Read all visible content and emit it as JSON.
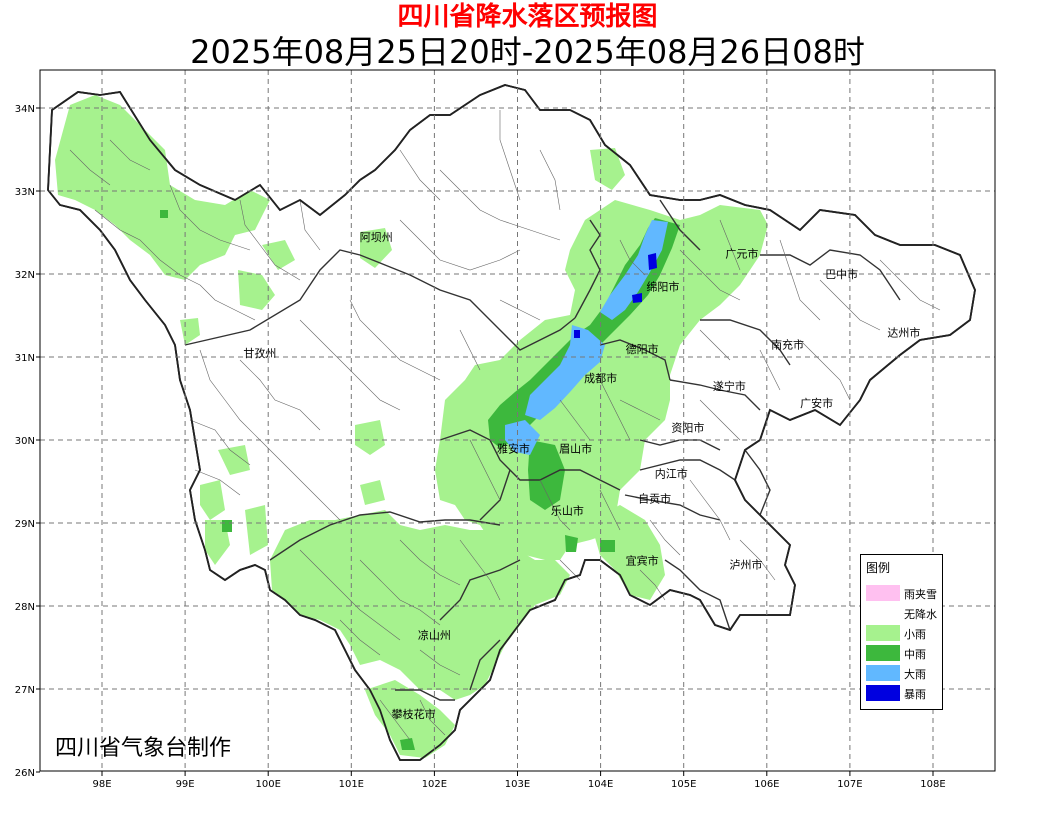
{
  "title": "四川省降水落区预报图",
  "subtitle": "2025年08月25日20时-2025年08月26日08时",
  "credit": "四川省气象台制作",
  "axes": {
    "lon_ticks": [
      "98E",
      "99E",
      "100E",
      "101E",
      "102E",
      "103E",
      "104E",
      "105E",
      "106E",
      "107E",
      "108E"
    ],
    "lat_ticks": [
      "34N",
      "33N",
      "32N",
      "31N",
      "30N",
      "29N",
      "28N",
      "27N",
      "26N"
    ]
  },
  "cities": [
    {
      "name": "阿坝州",
      "lon": 101.3,
      "lat": 32.4
    },
    {
      "name": "甘孜州",
      "lon": 99.9,
      "lat": 31.0
    },
    {
      "name": "广元市",
      "lon": 105.7,
      "lat": 32.2
    },
    {
      "name": "巴中市",
      "lon": 106.9,
      "lat": 31.95
    },
    {
      "name": "绵阳市",
      "lon": 104.75,
      "lat": 31.8
    },
    {
      "name": "达州市",
      "lon": 107.65,
      "lat": 31.25
    },
    {
      "name": "南充市",
      "lon": 106.25,
      "lat": 31.1
    },
    {
      "name": "德阳市",
      "lon": 104.5,
      "lat": 31.05
    },
    {
      "name": "成都市",
      "lon": 104.0,
      "lat": 30.7
    },
    {
      "name": "遂宁市",
      "lon": 105.55,
      "lat": 30.6
    },
    {
      "name": "广安市",
      "lon": 106.6,
      "lat": 30.4
    },
    {
      "name": "资阳市",
      "lon": 105.05,
      "lat": 30.1
    },
    {
      "name": "雅安市",
      "lon": 102.95,
      "lat": 29.85
    },
    {
      "name": "眉山市",
      "lon": 103.7,
      "lat": 29.85
    },
    {
      "name": "内江市",
      "lon": 104.85,
      "lat": 29.55
    },
    {
      "name": "自贡市",
      "lon": 104.65,
      "lat": 29.25
    },
    {
      "name": "乐山市",
      "lon": 103.6,
      "lat": 29.1
    },
    {
      "name": "宜宾市",
      "lon": 104.5,
      "lat": 28.5
    },
    {
      "name": "泸州市",
      "lon": 105.75,
      "lat": 28.45
    },
    {
      "name": "凉山州",
      "lon": 102.0,
      "lat": 27.6
    },
    {
      "name": "攀枝花市",
      "lon": 101.75,
      "lat": 26.65
    }
  ],
  "legend": {
    "title": "图例",
    "items": [
      {
        "label": "雨夹雪",
        "color": "#ffc0f0"
      },
      {
        "label": "无降水",
        "color": "#ffffff"
      },
      {
        "label": "小雨",
        "color": "#a6f28e"
      },
      {
        "label": "中雨",
        "color": "#3db83d"
      },
      {
        "label": "大雨",
        "color": "#61b8ff"
      },
      {
        "label": "暴雨",
        "color": "#0000e0"
      }
    ]
  }
}
